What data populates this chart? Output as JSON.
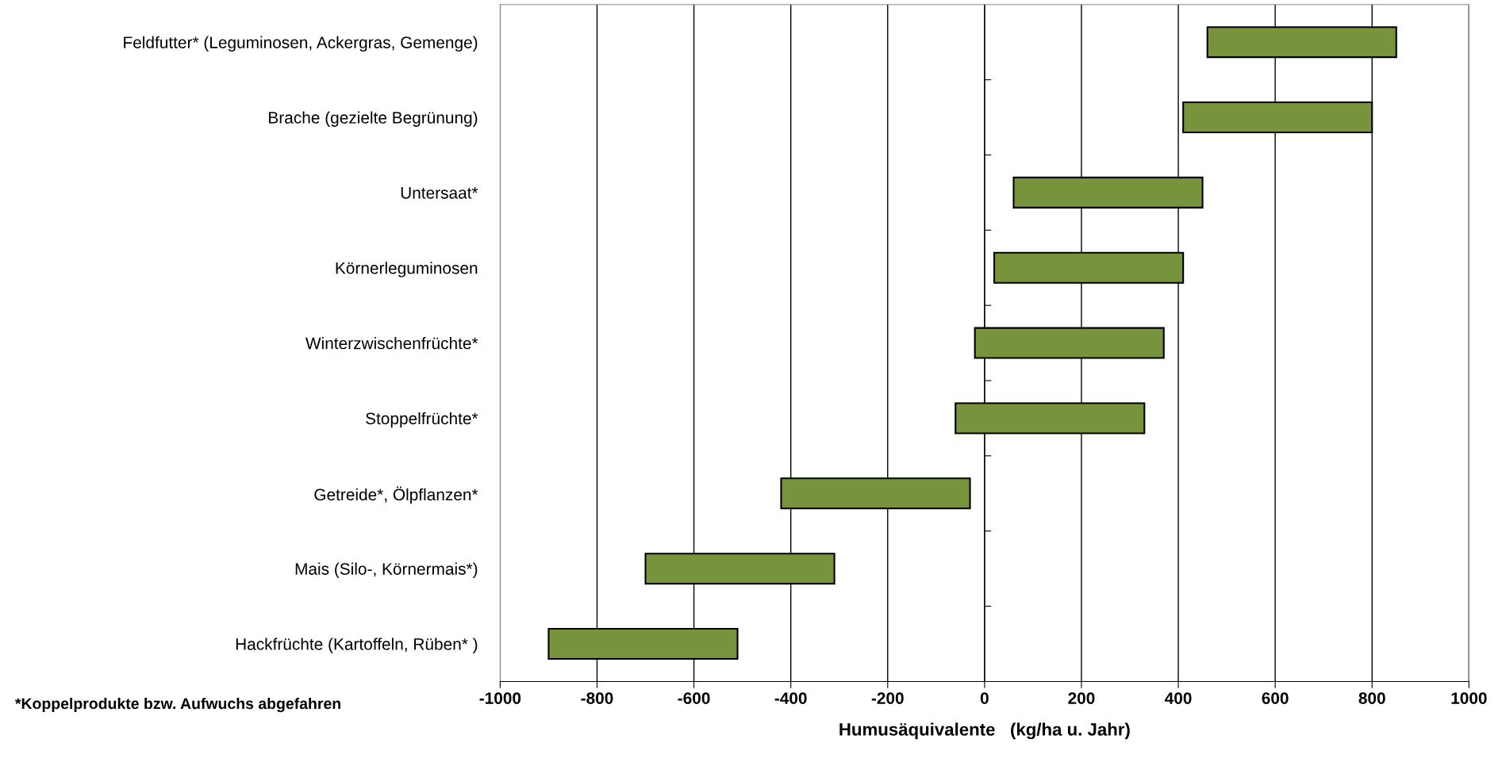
{
  "chart_data": {
    "type": "bar",
    "orientation": "horizontal",
    "categories": [
      "Feldfutter* (Leguminosen, Ackergras, Gemenge)",
      "Brache (gezielte Begrünung)",
      "Untersaat*",
      "Körnerleguminosen",
      "Winterzwischenfrüchte*",
      "Stoppelfrüchte*",
      "Getreide*, Ölpflanzen*",
      "Mais (Silo-, Körnermais*)",
      "Hackfrüchte (Kartoffeln, Rüben* )"
    ],
    "base": [
      460,
      410,
      60,
      20,
      -20,
      -60,
      -420,
      -700,
      -900
    ],
    "values": [
      390,
      390,
      390,
      390,
      390,
      390,
      390,
      390,
      390
    ],
    "color": "#77933c",
    "xlabel": "Humusäquivalente   (kg/ha u. Jahr)",
    "xlim": [
      -1000,
      1000
    ],
    "xticks": [
      -1000,
      -800,
      -600,
      -400,
      -200,
      0,
      200,
      400,
      600,
      800,
      1000
    ],
    "grid": "x",
    "annotations": [
      "*Koppelprodukte bzw. Aufwuchs abgefahren"
    ]
  }
}
